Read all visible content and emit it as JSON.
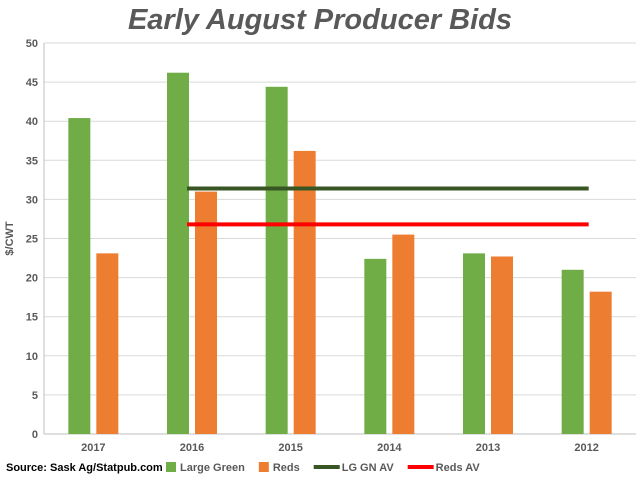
{
  "chart_data": {
    "type": "bar",
    "title": "Early August Producer Bids",
    "ylabel": "$/CWT",
    "xlabel": "",
    "categories": [
      "2017",
      "2016",
      "2015",
      "2014",
      "2013",
      "2012"
    ],
    "ylim": [
      0,
      50
    ],
    "yticks": [
      0,
      5,
      10,
      15,
      20,
      25,
      30,
      35,
      40,
      45,
      50
    ],
    "grid": true,
    "legend_position": "bottom",
    "series": [
      {
        "name": "Large Green",
        "type": "bar",
        "color": "#70AD47",
        "values": [
          40.4,
          46.2,
          44.4,
          22.4,
          23.1,
          21.0
        ]
      },
      {
        "name": "Reds",
        "type": "bar",
        "color": "#ED7D31",
        "values": [
          23.1,
          31.0,
          36.2,
          25.5,
          22.7,
          18.2
        ]
      },
      {
        "name": "LG GN AV",
        "type": "line",
        "color": "#375623",
        "values": [
          null,
          31.4,
          31.4,
          31.4,
          31.4,
          31.4
        ]
      },
      {
        "name": "Reds AV",
        "type": "line",
        "color": "#FF0000",
        "values": [
          null,
          26.8,
          26.8,
          26.8,
          26.8,
          26.8
        ]
      }
    ]
  },
  "source": "Source: Sask Ag/Statpub.com"
}
